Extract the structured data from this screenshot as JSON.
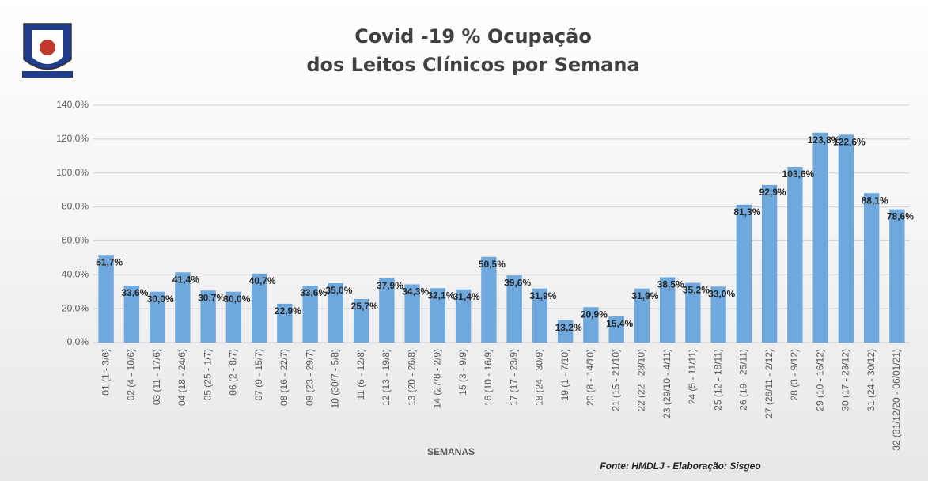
{
  "chart_data": {
    "type": "bar",
    "title": "Covid -19 % Ocupação",
    "subtitle": "dos Leitos Clínicos por Semana",
    "x_label": "SEMANAS",
    "source": "Fonte: HMDLJ - Elaboração: Sisgeo",
    "categories": [
      "01 (1 - 3/6)",
      "02 (4 - 10/6)",
      "03 (11 - 17/6)",
      "04 (18 - 24/6)",
      "05 (25 - 1/7)",
      "06 (2 - 8/7)",
      "07 (9 - 15/7)",
      "08 (16 - 22/7)",
      "09 (23 - 29/7)",
      "10 (30/7 - 5/8)",
      "11 (6 - 12/8)",
      "12 (13 - 19/8)",
      "13 (20 - 26/8)",
      "14 (27/8 - 2/9)",
      "15 (3 - 9/9)",
      "16 (10 - 16/9)",
      "17 (17 - 23/9)",
      "18 (24 - 30/9)",
      "19 (1 - 7/10)",
      "20 (8 - 14/10)",
      "21 (15 - 21/10)",
      "22 (22 - 28/10)",
      "23 (29/10 - 4/11)",
      "24 (5 - 11/11)",
      "25 (12 - 18/11)",
      "26 (19 - 25/11)",
      "27 (26/11 - 2/12)",
      "28 (3 - 9/12)",
      "29 (10 - 16/12)",
      "30 (17 - 23/12)",
      "31 (24 - 30/12)",
      "32 (31/12/20 - 06/01/21)"
    ],
    "values": [
      51.7,
      33.6,
      30.0,
      41.4,
      30.7,
      30.0,
      40.7,
      22.9,
      33.6,
      35.0,
      25.7,
      37.9,
      34.3,
      32.1,
      31.4,
      50.5,
      39.6,
      31.9,
      13.2,
      20.9,
      15.4,
      31.9,
      38.5,
      35.2,
      33.0,
      81.3,
      92.9,
      103.6,
      123.8,
      122.6,
      88.1,
      78.6
    ],
    "value_labels": [
      "51,7%",
      "33,6%",
      "30,0%",
      "41,4%",
      "30,7%",
      "30,0%",
      "40,7%",
      "22,9%",
      "33,6%",
      "35,0%",
      "25,7%",
      "37,9%",
      "34,3%",
      "32,1%",
      "31,4%",
      "50,5%",
      "39,6%",
      "31,9%",
      "13,2%",
      "20,9%",
      "15,4%",
      "31,9%",
      "38,5%",
      "35,2%",
      "33,0%",
      "81,3%",
      "92,9%",
      "103,6%",
      "123,8%",
      "122,6%",
      "88,1%",
      "78,6%"
    ],
    "color": "#6fa8dc",
    "ylim": [
      0,
      140
    ],
    "yticks": [
      {
        "value": 0,
        "label": "0,0%"
      },
      {
        "value": 20,
        "label": "20,0%"
      },
      {
        "value": 40,
        "label": "40,0%"
      },
      {
        "value": 60,
        "label": "60,0%"
      },
      {
        "value": 80,
        "label": "80,0%"
      },
      {
        "value": 100,
        "label": "100,0%"
      },
      {
        "value": 120,
        "label": "120,0%"
      },
      {
        "value": 140,
        "label": "140,0%"
      }
    ],
    "grid": true
  }
}
